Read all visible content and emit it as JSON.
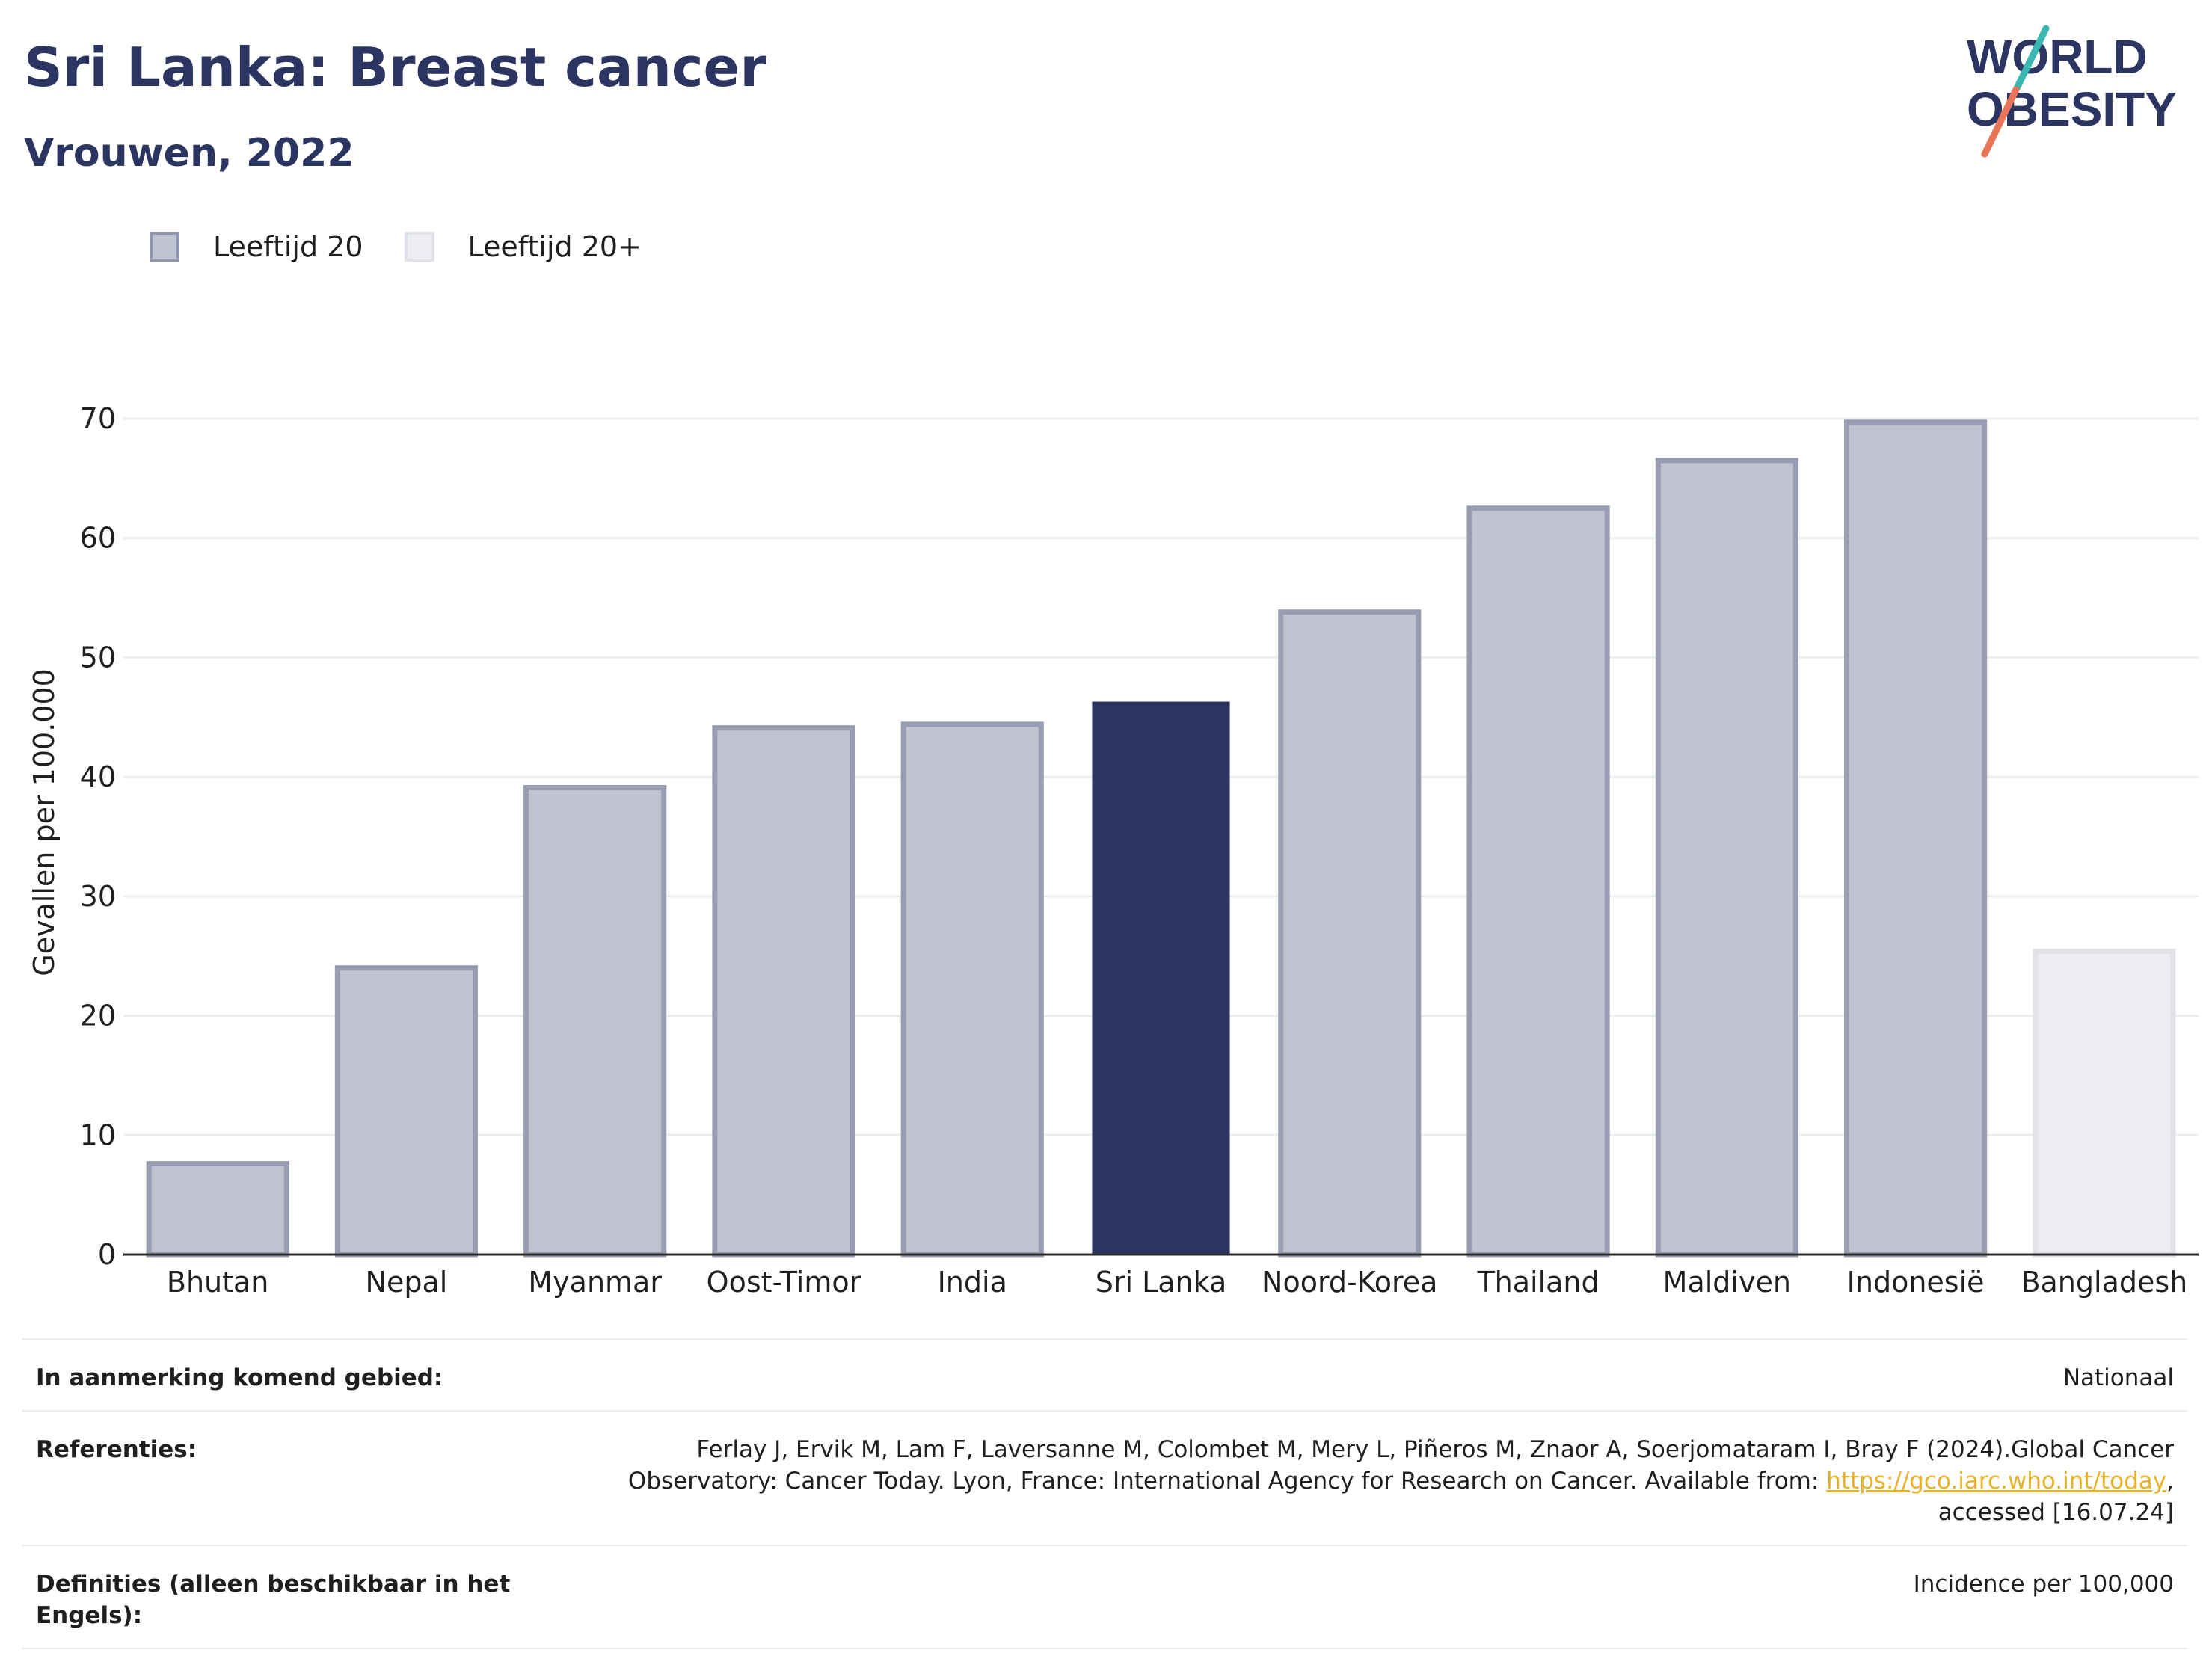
{
  "header": {
    "title": "Sri Lanka: Breast cancer",
    "subtitle": "Vrouwen, 2022"
  },
  "logo": {
    "line1": "WORLD",
    "line2": "OBESITY",
    "slash_colors": [
      "#3bb7b1",
      "#e8745a"
    ]
  },
  "legend": {
    "items": [
      {
        "label": "Leeftijd 20",
        "fill": "#bfc3d0",
        "stroke": "#8f95ab"
      },
      {
        "label": "Leeftijd 20+",
        "fill": "#eceef2",
        "stroke": "#dfe2e8"
      }
    ]
  },
  "colors": {
    "highlight": "#2b3561",
    "bar_fill": "#bfc3d0",
    "bar_stroke": "#989db1",
    "alt_fill": "#eceef2",
    "alt_stroke": "#e1e3e9",
    "grid": "#eceef1",
    "axis": "#2b2b2b"
  },
  "chart_data": {
    "type": "bar",
    "ylabel": "Gevallen per 100.000",
    "xlabel": "",
    "ylim": [
      0,
      70
    ],
    "yticks": [
      0,
      10,
      20,
      30,
      40,
      50,
      60,
      70
    ],
    "grid": true,
    "legend_position": "top-left",
    "categories": [
      "Bhutan",
      "Nepal",
      "Myanmar",
      "Oost-Timor",
      "India",
      "Sri Lanka",
      "Noord-Korea",
      "Thailand",
      "Maldiven",
      "Indonesië",
      "Bangladesh"
    ],
    "values": [
      7.6,
      24.0,
      39.1,
      44.1,
      44.4,
      46.3,
      53.8,
      62.5,
      66.5,
      69.7,
      25.4
    ],
    "series_of_bar": [
      "Leeftijd 20",
      "Leeftijd 20",
      "Leeftijd 20",
      "Leeftijd 20",
      "Leeftijd 20",
      "Leeftijd 20",
      "Leeftijd 20",
      "Leeftijd 20",
      "Leeftijd 20",
      "Leeftijd 20",
      "Leeftijd 20+"
    ],
    "highlighted": "Sri Lanka"
  },
  "info": {
    "region_label": "In aanmerking komend gebied:",
    "region_value": "Nationaal",
    "references_label": "Referenties:",
    "references_text_1": "Ferlay J, Ervik M, Lam F, Laversanne M, Colombet M, Mery L, Piñeros M, Znaor A, Soerjomataram I, Bray F (2024).Global Cancer",
    "references_text_2": "Observatory: Cancer Today. Lyon, France: International Agency for Research on Cancer. Available from: ",
    "references_link": "https://gco.iarc.who.int/today",
    "references_text_3": ",",
    "references_text_4": "accessed [16.07.24]",
    "definitions_label": "Definities (alleen beschikbaar in het Engels):",
    "definitions_value": "Incidence per 100,000"
  }
}
